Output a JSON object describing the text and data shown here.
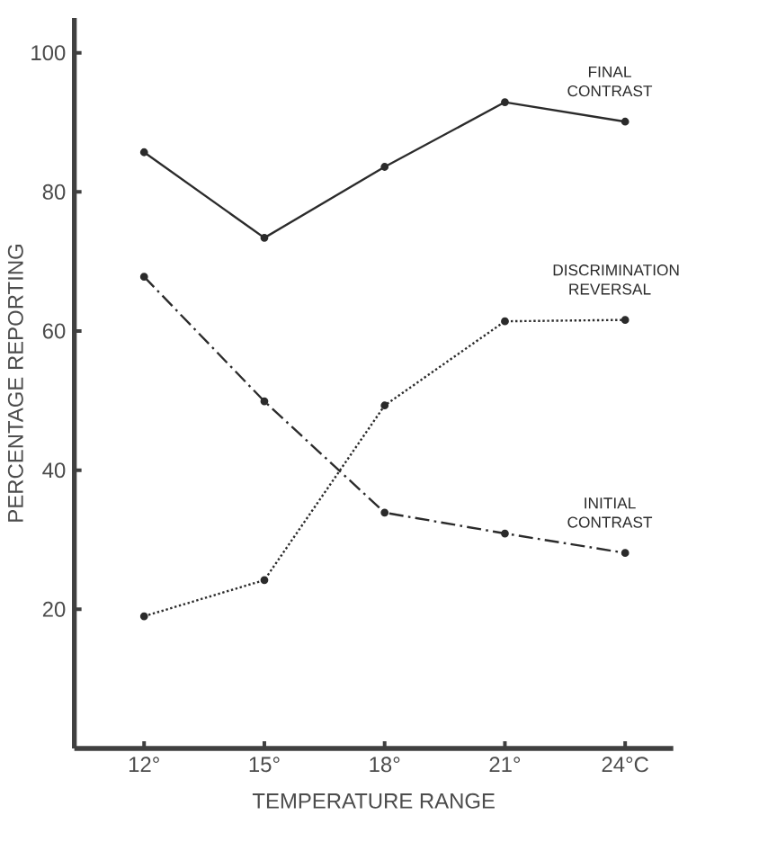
{
  "chart_data": {
    "type": "line",
    "xlabel": "TEMPERATURE RANGE",
    "ylabel": "PERCENTAGE REPORTING",
    "categories": [
      "12°",
      "15°",
      "18°",
      "21°",
      "24°C"
    ],
    "ylim": [
      0,
      105
    ],
    "yticks": [
      20,
      40,
      60,
      80,
      100
    ],
    "marker": "circle",
    "series": [
      {
        "name": "FINAL CONTRAST",
        "color": "#2b2b2b",
        "line_style": "solid",
        "values": [
          85.7,
          73.4,
          83.6,
          92.9,
          90.1
        ]
      },
      {
        "name": "DISCRIMINATION REVERSAL",
        "color": "#2b2b2b",
        "line_style": "dotted",
        "values": [
          19,
          24.2,
          49.3,
          61.4,
          61.6
        ]
      },
      {
        "name": "INITIAL CONTRAST",
        "color": "#2b2b2b",
        "line_style": "dashdot",
        "values": [
          67.8,
          49.9,
          33.9,
          30.9,
          28.1
        ]
      }
    ]
  }
}
